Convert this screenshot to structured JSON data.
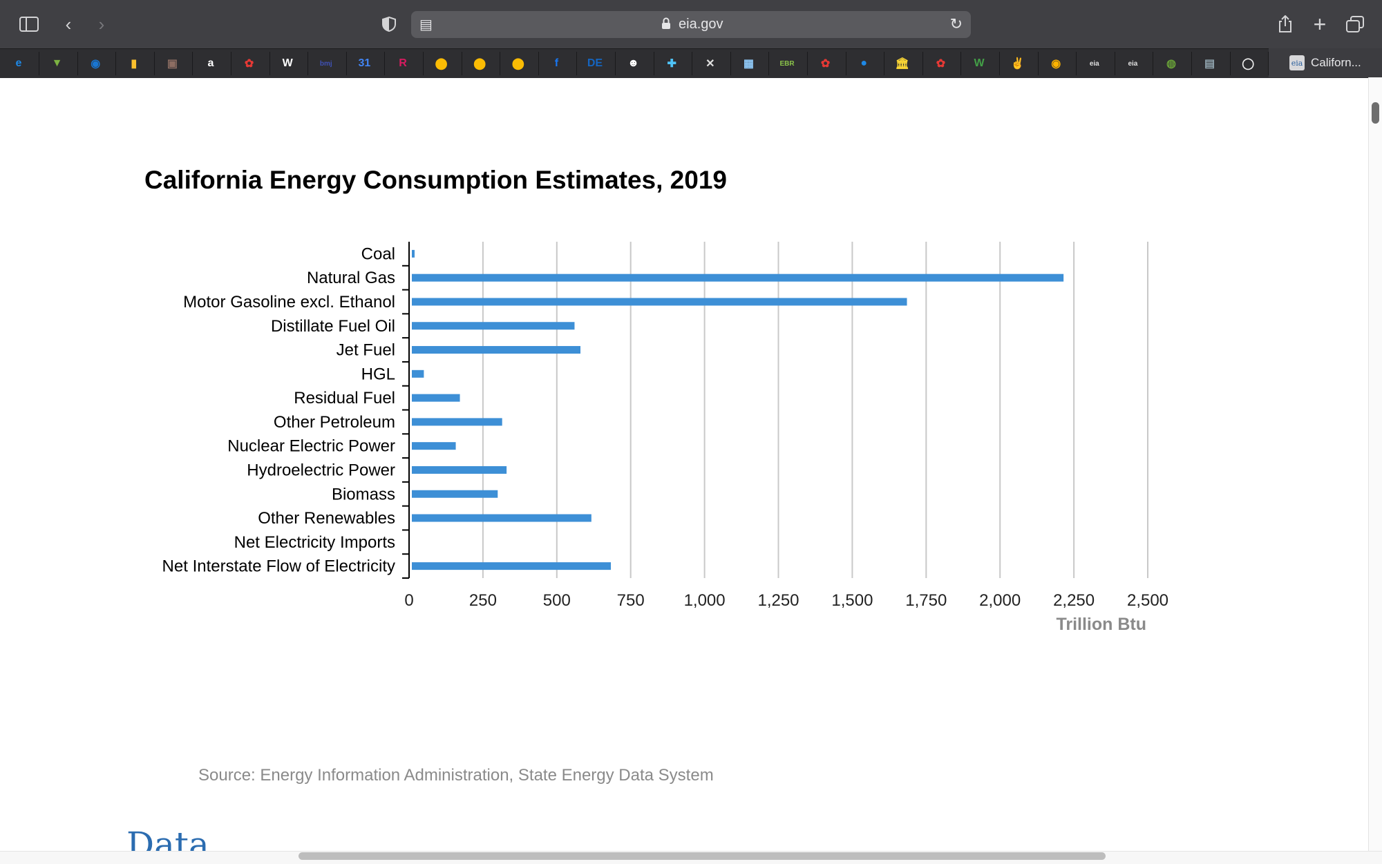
{
  "browser": {
    "url": "eia.gov",
    "active_tab_title": "Californ...",
    "tab_icon_text": "eia",
    "favorites": [
      {
        "icon": "edge-icon",
        "glyph": "e",
        "color": "#1e88e5"
      },
      {
        "icon": "shield-icon",
        "glyph": "▼",
        "color": "#7cb342"
      },
      {
        "icon": "att-icon",
        "glyph": "◉",
        "color": "#1976d2"
      },
      {
        "icon": "books-icon",
        "glyph": "▮",
        "color": "#fbc02d"
      },
      {
        "icon": "photo-icon",
        "glyph": "▣",
        "color": "#8d6e63"
      },
      {
        "icon": "amazon-icon",
        "glyph": "a",
        "color": "#ffffff"
      },
      {
        "icon": "gift-icon",
        "glyph": "✿",
        "color": "#e53935"
      },
      {
        "icon": "wordpress-icon",
        "glyph": "W",
        "color": "#ffffff"
      },
      {
        "icon": "bmj-icon",
        "glyph": "bmj",
        "color": "#3f51b5"
      },
      {
        "icon": "calendar-icon",
        "glyph": "31",
        "color": "#4285f4"
      },
      {
        "icon": "r-icon",
        "glyph": "R",
        "color": "#d81b60"
      },
      {
        "icon": "map-pin-icon",
        "glyph": "⬤",
        "color": "#fbbc04"
      },
      {
        "icon": "map-pin-icon",
        "glyph": "⬤",
        "color": "#fbbc04"
      },
      {
        "icon": "map-pin-icon",
        "glyph": "⬤",
        "color": "#fbbc04"
      },
      {
        "icon": "facebook-icon",
        "glyph": "f",
        "color": "#1877f2"
      },
      {
        "icon": "de-icon",
        "glyph": "DE",
        "color": "#1565c0"
      },
      {
        "icon": "basket-icon",
        "glyph": "☻",
        "color": "#ffffff"
      },
      {
        "icon": "plus-cross-icon",
        "glyph": "✚",
        "color": "#4fc3f7"
      },
      {
        "icon": "puzzle-icon",
        "glyph": "✕",
        "color": "#e0e0e0"
      },
      {
        "icon": "grid-icon",
        "glyph": "▦",
        "color": "#90caf9"
      },
      {
        "icon": "ebr-icon",
        "glyph": "EBR",
        "color": "#8bc34a"
      },
      {
        "icon": "gift-icon",
        "glyph": "✿",
        "color": "#e53935"
      },
      {
        "icon": "chat-icon",
        "glyph": "●",
        "color": "#1e88e5"
      },
      {
        "icon": "bank-icon",
        "glyph": "🏛",
        "color": "#fdd835"
      },
      {
        "icon": "gift-icon",
        "glyph": "✿",
        "color": "#e53935"
      },
      {
        "icon": "w-icon",
        "glyph": "W",
        "color": "#43a047"
      },
      {
        "icon": "hand-icon",
        "glyph": "✌",
        "color": "#ffffff"
      },
      {
        "icon": "eye-icon",
        "glyph": "◉",
        "color": "#ffb300"
      },
      {
        "icon": "eia-icon",
        "glyph": "eia",
        "color": "#e0e0e0"
      },
      {
        "icon": "eia-icon",
        "glyph": "eia",
        "color": "#e0e0e0"
      },
      {
        "icon": "leaf-icon",
        "glyph": "◍",
        "color": "#689f38"
      },
      {
        "icon": "stripe-icon",
        "glyph": "▤",
        "color": "#90a4ae"
      },
      {
        "icon": "circle-icon",
        "glyph": "◯",
        "color": "#eeeeee"
      }
    ]
  },
  "page": {
    "title": "California Energy Consumption Estimates, 2019",
    "source": "Source: Energy Information Administration, State Energy Data System",
    "next_heading": "Data"
  },
  "colors": {
    "bar": "#3d8fd6",
    "grid": "#c8c8c8",
    "unit_label": "#8a8a8a"
  },
  "chart_data": {
    "type": "bar",
    "orientation": "horizontal",
    "title": "California Energy Consumption Estimates, 2019",
    "xlabel": "Trillion Btu",
    "ylabel": "",
    "xlim": [
      0,
      2500
    ],
    "xticks": [
      0,
      250,
      500,
      750,
      1000,
      1250,
      1500,
      1750,
      2000,
      2250,
      2500
    ],
    "xtick_labels": [
      "0",
      "250",
      "500",
      "750",
      "1,000",
      "1,250",
      "1,500",
      "1,750",
      "2,000",
      "2,250",
      "2,500"
    ],
    "grid": true,
    "categories": [
      "Coal",
      "Natural Gas",
      "Motor Gasoline excl. Ethanol",
      "Distillate Fuel Oil",
      "Jet Fuel",
      "HGL",
      "Residual Fuel",
      "Other Petroleum",
      "Nuclear Electric Power",
      "Hydroelectric Power",
      "Biomass",
      "Other Renewables",
      "Net Electricity Imports",
      "Net Interstate Flow of Electricity"
    ],
    "values": [
      15,
      2215,
      1685,
      560,
      580,
      50,
      172,
      315,
      158,
      330,
      300,
      617,
      0,
      683
    ]
  }
}
